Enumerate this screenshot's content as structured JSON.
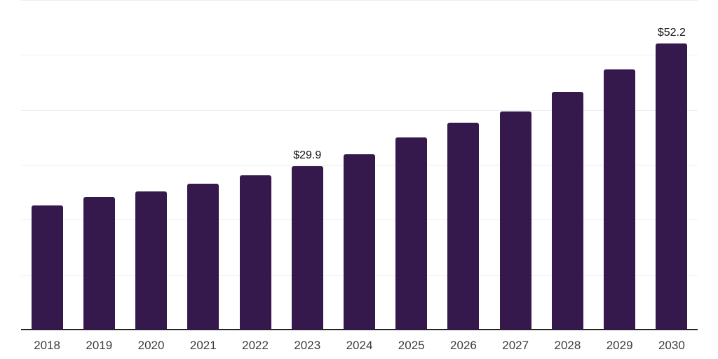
{
  "chart_data": {
    "type": "bar",
    "title": "",
    "xlabel": "",
    "ylabel": "",
    "categories": [
      "2018",
      "2019",
      "2020",
      "2021",
      "2022",
      "2023",
      "2024",
      "2025",
      "2026",
      "2027",
      "2028",
      "2029",
      "2030"
    ],
    "values": [
      22.7,
      24.3,
      25.3,
      26.7,
      28.2,
      29.9,
      32.0,
      35.1,
      37.8,
      39.8,
      43.4,
      47.5,
      52.2
    ],
    "point_labels": {
      "2023": "$29.9",
      "2030": "$52.2"
    },
    "ylim": [
      0,
      60
    ],
    "grid_step": 10,
    "grid": "horizontal-only",
    "legend_position": "none",
    "colors": {
      "bar": "#35194c",
      "gridline": "#ededed",
      "axis_line": "#242424",
      "tick_label": "#3c3c3c",
      "value_label": "#111111",
      "background": "#ffffff"
    }
  }
}
